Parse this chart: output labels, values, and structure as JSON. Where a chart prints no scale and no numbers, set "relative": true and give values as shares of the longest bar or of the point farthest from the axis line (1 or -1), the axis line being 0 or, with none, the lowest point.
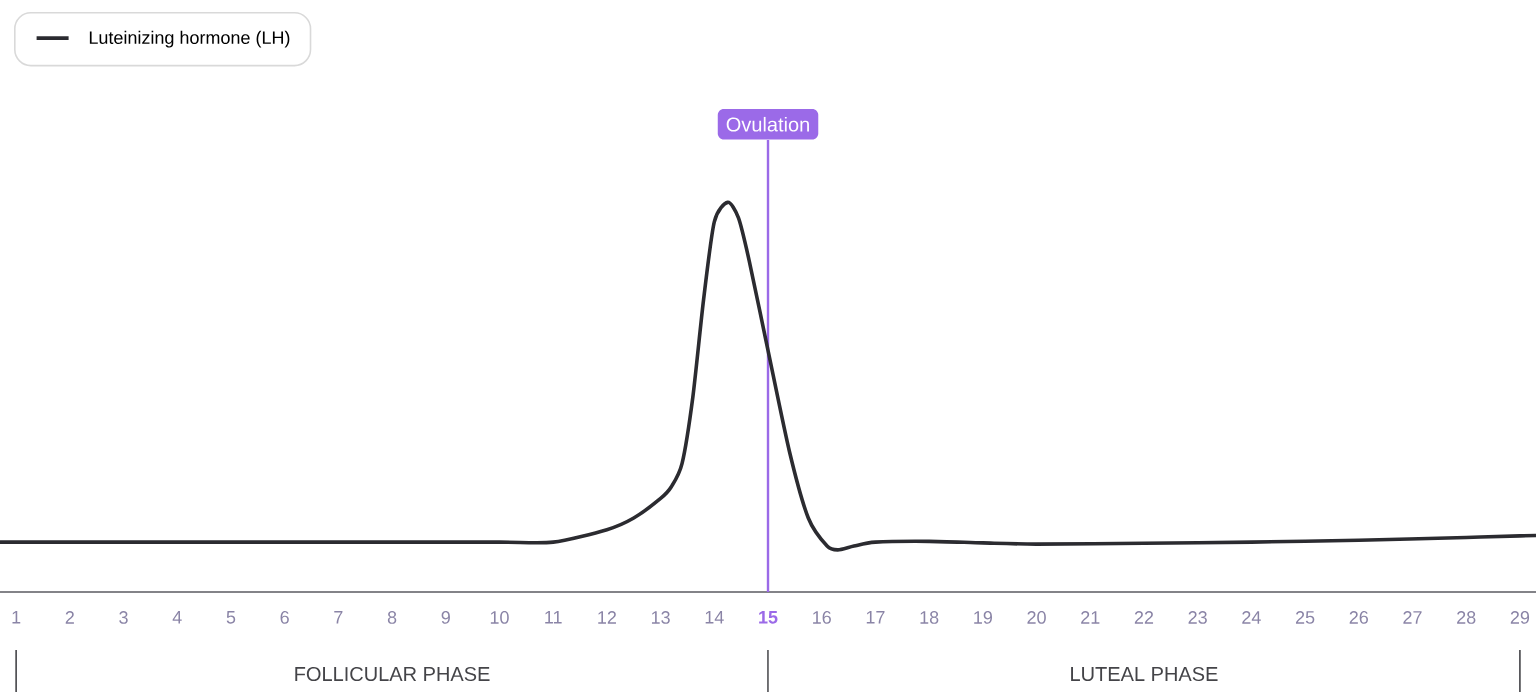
{
  "chart_data": {
    "type": "line",
    "relative": true,
    "x": [
      0.7,
      2,
      4,
      6,
      8,
      10,
      11,
      12,
      12.5,
      13,
      13.2,
      13.4,
      13.6,
      13.8,
      14,
      14.25,
      14.45,
      14.65,
      15,
      15.4,
      15.75,
      16.1,
      16.3,
      16.6,
      17,
      18,
      19,
      20,
      22,
      24,
      26,
      28,
      29,
      29.3
    ],
    "series": [
      {
        "name": "Luteinizing hormone (LH)",
        "color": "#2b2b30",
        "values": [
          0.128,
          0.128,
          0.128,
          0.128,
          0.128,
          0.128,
          0.128,
          0.16,
          0.19,
          0.24,
          0.27,
          0.33,
          0.5,
          0.75,
          0.95,
          1,
          0.96,
          0.85,
          0.62,
          0.36,
          0.19,
          0.118,
          0.108,
          0.118,
          0.128,
          0.13,
          0.126,
          0.123,
          0.125,
          0.128,
          0.133,
          0.14,
          0.144,
          0.145
        ]
      }
    ],
    "xlim": [
      0.7,
      29.3
    ],
    "xticks": [
      1,
      2,
      3,
      4,
      5,
      6,
      7,
      8,
      9,
      10,
      11,
      12,
      13,
      14,
      15,
      16,
      17,
      18,
      19,
      20,
      21,
      22,
      23,
      24,
      25,
      26,
      27,
      28,
      29
    ],
    "ref_lines": [
      {
        "axis": "x",
        "value": 15,
        "label": "Ovulation",
        "color": "#9b6ae8"
      }
    ],
    "annotations": [
      "FOLLICULAR PHASE",
      "LUTEAL PHASE"
    ],
    "legend": "top left",
    "grid": false,
    "marker": "none",
    "line_style": "solid"
  }
}
